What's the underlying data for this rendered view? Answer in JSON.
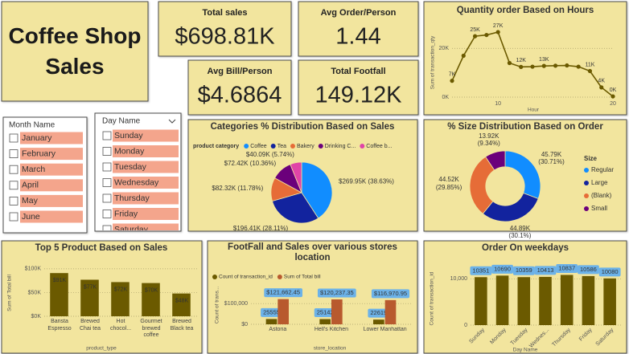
{
  "title": "Coffee Shop Sales",
  "kpis": [
    {
      "label": "Total sales",
      "value": "$698.81K"
    },
    {
      "label": "Avg Order/Person",
      "value": "1.44"
    },
    {
      "label": "Avg Bill/Person",
      "value": "$4.6864"
    },
    {
      "label": "Total Footfall",
      "value": "149.12K"
    }
  ],
  "slicers": [
    {
      "title": "Month Name",
      "items": [
        "January",
        "February",
        "March",
        "April",
        "May",
        "June"
      ]
    },
    {
      "title": "Day Name",
      "items": [
        "Sunday",
        "Monday",
        "Tuesday",
        "Wednesday",
        "Thursday",
        "Friday",
        "Saturday"
      ]
    }
  ],
  "chart_data": [
    {
      "type": "line",
      "title": "Quantity order Based on Hours",
      "x": [
        6,
        7,
        8,
        9,
        10,
        11,
        12,
        13,
        14,
        15,
        16,
        17,
        18,
        19,
        20
      ],
      "values": [
        6700,
        17000,
        25000,
        25500,
        26700,
        14000,
        12400,
        12500,
        12800,
        12900,
        13000,
        12500,
        10700,
        4000,
        300
      ],
      "value_labels": [
        "7K",
        null,
        "25K",
        null,
        "27K",
        null,
        "12K",
        null,
        "13K",
        null,
        null,
        null,
        "11K",
        "4K",
        "0K"
      ],
      "color": "#6B5A00",
      "xlim": [
        6,
        20
      ],
      "xticks": [
        10,
        20
      ],
      "ylim": [
        0,
        28000
      ],
      "yticks": [
        {
          "value": 0,
          "label": "0K"
        },
        {
          "value": 20000,
          "label": "20K"
        }
      ],
      "xlabel": "Hour",
      "ylabel": "Sum of transaction_qty",
      "grid": true
    },
    {
      "type": "pie",
      "title": "Categories % Distribution Based on Sales",
      "legend_title": "product category",
      "categories": [
        "Coffee",
        "Tea",
        "Bakery",
        "Drinking C...",
        "Coffee b..."
      ],
      "values": [
        269950,
        196410,
        82320,
        72420,
        40090
      ],
      "value_labels": [
        "$269.95K (38.63%)",
        "$196.41K (28.11%)",
        "$82.32K (11.78%)",
        "$72.42K (10.36%)",
        "$40.09K (5.74%)"
      ],
      "colors": [
        "#118DFF",
        "#12239E",
        "#E66C37",
        "#6B007B",
        "#E044A7"
      ],
      "legend": "top"
    },
    {
      "type": "donut",
      "title": "% Size Distribution Based on Order",
      "legend_title": "Size",
      "categories": [
        "Regular",
        "Large",
        "(Blank)",
        "Small"
      ],
      "values": [
        45790,
        44890,
        44520,
        13920
      ],
      "value_labels": [
        "45.79K (30.71%)",
        "44.89K (30.1%)",
        "44.52K (29.85%)",
        "13.92K (9.34%)"
      ],
      "colors": [
        "#118DFF",
        "#12239E",
        "#E66C37",
        "#6B007B"
      ],
      "legend": "right"
    },
    {
      "type": "bar",
      "title": "Top 5 Product Based on Sales",
      "categories": [
        "Barista Espresso",
        "Brewed Chai tea",
        "Hot chocol...",
        "Gourmet brewed coffee",
        "Brewed Black tea"
      ],
      "values": [
        91000,
        77000,
        72000,
        70000,
        48000
      ],
      "value_labels": [
        "$91K",
        "$77K",
        "$72K",
        "$70K",
        "$48K"
      ],
      "color": "#6B5A00",
      "ylim": [
        0,
        115000
      ],
      "yticks": [
        {
          "value": 0,
          "label": "$0K"
        },
        {
          "value": 50000,
          "label": "$50K"
        },
        {
          "value": 100000,
          "label": "$100K"
        }
      ],
      "xlabel": "product_type",
      "ylabel": "Sum of Total bill",
      "grid": true
    },
    {
      "type": "bar",
      "title": "FootFall and Sales over various stores location",
      "categories": [
        "Astoria",
        "Hell's Kitchen",
        "Lower Manhattan"
      ],
      "series": [
        {
          "name": "Count of transaction_id",
          "color": "#6B5A00",
          "values": [
            25555,
            25142,
            22619
          ]
        },
        {
          "name": "Sum of Total bill",
          "color": "#B85A2E",
          "values": [
            121662.45,
            120237.35,
            116970.95
          ],
          "value_labels": [
            "$121,662.45",
            "$120,237.35",
            "$116,970.95"
          ]
        }
      ],
      "ylim": [
        0,
        190000
      ],
      "yticks": [
        {
          "value": 0,
          "label": "$0"
        },
        {
          "value": 100000,
          "label": "$100,000"
        }
      ],
      "xlabel": "store_location",
      "ylabel": "Count of trans...",
      "legend": "top",
      "grid": true
    },
    {
      "type": "bar",
      "title": "Order On weekdays",
      "categories": [
        "Sunday",
        "Monday",
        "Tuesday",
        "Wednes...",
        "Thursday",
        "Friday",
        "Saturday"
      ],
      "values": [
        10351,
        10690,
        10359,
        10413,
        10837,
        10586,
        10080
      ],
      "color": "#6B5A00",
      "ylim": [
        0,
        13000
      ],
      "yticks": [
        0,
        {
          "value": 10000,
          "label": "10,000"
        }
      ],
      "xlabel": "Day Name",
      "ylabel": "Count of transaction_id",
      "grid": true
    }
  ]
}
